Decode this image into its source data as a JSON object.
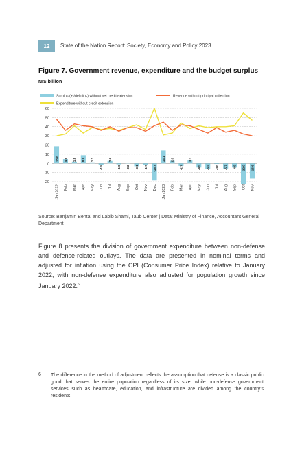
{
  "header": {
    "page_number": "12",
    "title": "State of the Nation Report: Society, Economy and Policy 2023"
  },
  "figure": {
    "title": "Figure 7. Government revenue, expenditure and the budget surplus",
    "unit": "NIS billion",
    "source": "Source: Benjamin Bental and Labib Shami, Taub Center | Data: Ministry of Finance, Accountant General Department"
  },
  "colors": {
    "surplus": "#8ecfe0",
    "revenue": "#f26b38",
    "expenditure": "#eee03a"
  },
  "chart_data": {
    "type": "bar",
    "ylim": [
      -20,
      60
    ],
    "yticks": [
      -20,
      -10,
      0,
      10,
      20,
      30,
      40,
      50,
      60
    ],
    "grid": true,
    "legend_position": "top",
    "categories": [
      "Jan 2022",
      "Feb",
      "Mar",
      "Apr",
      "May",
      "Jun",
      "Jul",
      "Aug",
      "Sep",
      "Oct",
      "Nov",
      "Dec",
      "Jan 2023",
      "Feb",
      "Mar",
      "Apr",
      "May",
      "Jun",
      "Jul",
      "Aug",
      "Sep",
      "Oct",
      "Nov"
    ],
    "series": [
      {
        "name": "Surplus (+)/deficit (-) without net credit extension",
        "kind": "bar",
        "values": [
          18.6,
          4.6,
          1.8,
          8.9,
          1.1,
          -1.5,
          2.6,
          -1.0,
          -0.2,
          -3.1,
          -1.7,
          -18.7,
          14.1,
          2.8,
          -2.7,
          3.1,
          -4.5,
          -6.2,
          -0.6,
          -5.7,
          -4.5,
          -22.9,
          -16.6
        ],
        "labels": [
          "18.6",
          "4.6",
          "1.8",
          "8.9",
          "1.1",
          "-1.5",
          "2.6",
          "-1.0",
          "-0.2",
          "-3.1",
          "-1.7",
          "-18.7",
          "14.1",
          "2.8",
          "-2.7",
          "3.1",
          "-4.5",
          "-6.2",
          "-0.6",
          "-5.7",
          "-4.5",
          "-22.9",
          "-16.6"
        ]
      },
      {
        "name": "Revenue without principal collection",
        "kind": "line",
        "values": [
          48,
          36,
          43,
          41,
          40,
          36,
          40,
          35,
          39,
          39,
          35,
          41,
          45,
          36,
          42,
          41,
          37,
          33,
          39,
          34,
          36,
          32,
          30
        ]
      },
      {
        "name": "Expenditure without credit extension",
        "kind": "line",
        "values": [
          30,
          32,
          41,
          33,
          39,
          37,
          38,
          36,
          39,
          42,
          37,
          60,
          31,
          33,
          44,
          38,
          41,
          39,
          40,
          40,
          41,
          55,
          47
        ]
      }
    ]
  },
  "body": {
    "paragraph": "Figure 8 presents the division of government expenditure between non-defense and defense-related outlays. The data are presented in nominal terms and adjusted for inflation using the CPI (Consumer Price Index) relative to January 2022, with non-defense expenditure also adjusted for population growth since January 2022.",
    "footnote_ref": "6"
  },
  "footnote": {
    "number": "6",
    "text": "The difference in the method of adjustment reflects the assumption that defense is a classic public good that serves the entire population regardless of its size, while non-defense government services such as healthcare, education, and infrastructure are divided among the country’s residents."
  }
}
